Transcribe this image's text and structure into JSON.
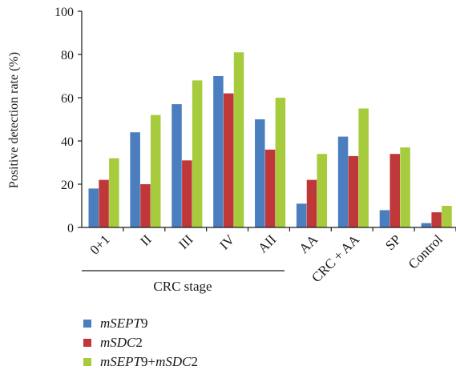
{
  "chart_data": {
    "type": "bar",
    "ylabel": "Positive detection rate (%)",
    "ylim": [
      0,
      100
    ],
    "yticks": [
      0,
      20,
      40,
      60,
      80,
      100
    ],
    "categories": [
      "0+1",
      "II",
      "III",
      "IV",
      "AII",
      "AA",
      "CRC + AA",
      "SP",
      "Control"
    ],
    "group_label": "CRC stage",
    "grid": false,
    "legend_position": "bottom-left",
    "series": [
      {
        "name": "mSEPT9",
        "color": "#4a7ebf",
        "values": [
          18,
          44,
          57,
          70,
          50,
          11,
          42,
          8,
          2
        ]
      },
      {
        "name": "mSDC2",
        "color": "#c0373a",
        "values": [
          22,
          20,
          31,
          62,
          36,
          22,
          33,
          34,
          7
        ]
      },
      {
        "name": "mSEPT9+mSDC2",
        "color": "#a6cb3c",
        "values": [
          32,
          52,
          68,
          81,
          60,
          34,
          55,
          37,
          10
        ]
      }
    ]
  },
  "legend": [
    {
      "parts": [
        {
          "t": "mSEPT",
          "i": true
        },
        {
          "t": "9",
          "i": false
        }
      ],
      "color": "#4a7ebf"
    },
    {
      "parts": [
        {
          "t": "mSDC",
          "i": true
        },
        {
          "t": "2",
          "i": false
        }
      ],
      "color": "#c0373a"
    },
    {
      "parts": [
        {
          "t": "mSEPT",
          "i": true
        },
        {
          "t": "9+",
          "i": false
        },
        {
          "t": "mSDC",
          "i": true
        },
        {
          "t": "2",
          "i": false
        }
      ],
      "color": "#a6cb3c"
    }
  ]
}
